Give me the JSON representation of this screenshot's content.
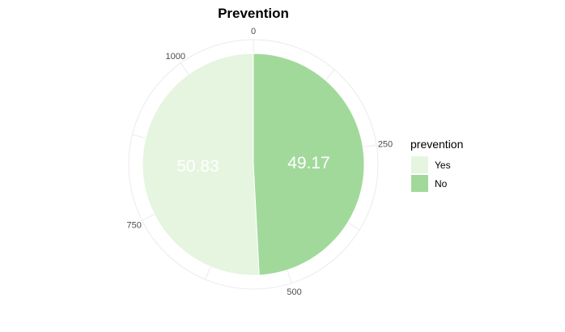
{
  "chart_data": {
    "type": "pie",
    "title": "Prevention",
    "legend_title": "prevention",
    "legend_position": "right",
    "total": 1110,
    "angular_ticks": [
      0,
      250,
      500,
      750,
      1000
    ],
    "slices": [
      {
        "name": "No",
        "value": 49.17,
        "label": "49.17",
        "color": "#a1d99b"
      },
      {
        "name": "Yes",
        "value": 50.83,
        "label": "50.83",
        "color": "#e5f5e0"
      }
    ],
    "legend_order": [
      "Yes",
      "No"
    ],
    "grid": true
  }
}
